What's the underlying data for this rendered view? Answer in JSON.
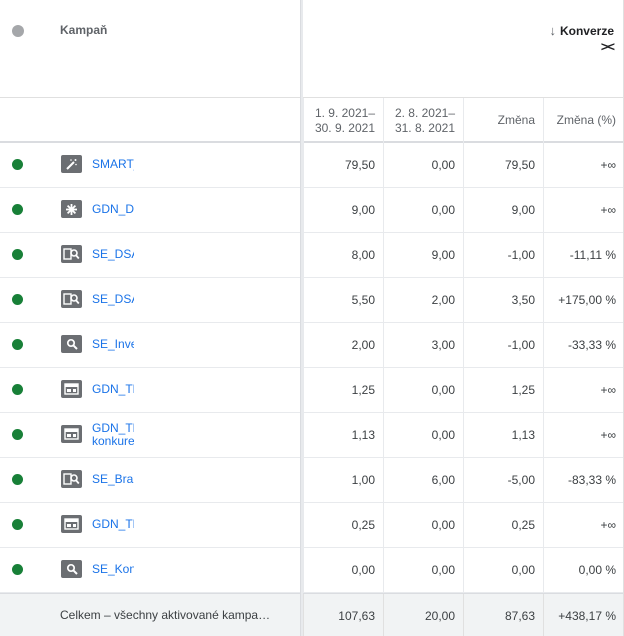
{
  "header": {
    "campaign_label": "Kampaň",
    "conversions_label": "Konverze",
    "sort_arrow": "↓",
    "collapse_glyph": "><",
    "columns": [
      {
        "line1": "1. 9. 2021–",
        "line2": "30. 9. 2021"
      },
      {
        "line1": "2. 8. 2021–",
        "line2": "31. 8. 2021"
      },
      {
        "line1": "Změna",
        "line2": ""
      },
      {
        "line1": "Změna (%)",
        "line2": ""
      }
    ]
  },
  "colors": {
    "status_active": "#188038",
    "status_header": "#a5a7aa",
    "link": "#1a73e8",
    "icon_bg": "#6b6e72"
  },
  "rows": [
    {
      "name": "SMART_",
      "name2": "",
      "icon": "magic-wand-icon",
      "v1": "79,50",
      "v2": "0,00",
      "v3": "79,50",
      "v4": "+∞"
    },
    {
      "name": "GDN_Di",
      "name2": "",
      "icon": "display-network-icon",
      "v1": "9,00",
      "v2": "0,00",
      "v3": "9,00",
      "v4": "+∞"
    },
    {
      "name": "SE_DSA",
      "name2": "",
      "icon": "search-dynamic-icon",
      "v1": "8,00",
      "v2": "9,00",
      "v3": "-1,00",
      "v4": "-11,11 %"
    },
    {
      "name": "SE_DSA",
      "name2": "",
      "icon": "search-dynamic-icon",
      "v1": "5,50",
      "v2": "2,00",
      "v3": "3,50",
      "v4": "+175,00 %"
    },
    {
      "name": "SE_Inve",
      "name2": "",
      "icon": "search-icon",
      "v1": "2,00",
      "v2": "3,00",
      "v3": "-1,00",
      "v4": "-33,33 %"
    },
    {
      "name": "GDN_TE",
      "name2": "",
      "icon": "display-layout-icon",
      "v1": "1,25",
      "v2": "0,00",
      "v3": "1,25",
      "v4": "+∞"
    },
    {
      "name": "GDN_TE",
      "name2": "konkure",
      "icon": "display-layout-icon",
      "v1": "1,13",
      "v2": "0,00",
      "v3": "1,13",
      "v4": "+∞"
    },
    {
      "name": "SE_Bran",
      "name2": "",
      "icon": "search-dynamic-icon",
      "v1": "1,00",
      "v2": "6,00",
      "v3": "-5,00",
      "v4": "-83,33 %"
    },
    {
      "name": "GDN_TE",
      "name2": "",
      "icon": "display-layout-icon",
      "v1": "0,25",
      "v2": "0,00",
      "v3": "0,25",
      "v4": "+∞"
    },
    {
      "name": "SE_Konl",
      "name2": "",
      "icon": "search-icon",
      "v1": "0,00",
      "v2": "0,00",
      "v3": "0,00",
      "v4": "0,00 %"
    }
  ],
  "total": {
    "label": "Celkem – všechny aktivované kampa…",
    "v1": "107,63",
    "v2": "20,00",
    "v3": "87,63",
    "v4": "+438,17 %"
  }
}
